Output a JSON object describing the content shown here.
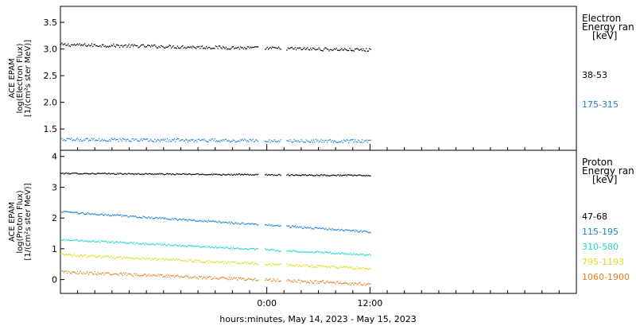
{
  "chart_data": [
    {
      "type": "scatter",
      "panel": "electron",
      "ylabel": [
        "ACE EPAM",
        "log(Electron Flux)",
        "[1/(cm²s ster MeV)]"
      ],
      "ylim": [
        1.1,
        3.8
      ],
      "yticks": [
        "1.5",
        "2.0",
        "2.5",
        "3.0",
        "3.5"
      ],
      "yticks_values": [
        1.5,
        2.0,
        2.5,
        3.0,
        3.5
      ],
      "legend_title": [
        "Electron",
        "Energy ran",
        "[keV]"
      ],
      "x_range_hours": [
        -24,
        36
      ],
      "gaps_hours": [
        [
          -1.0,
          -0.3
        ],
        [
          1.6,
          2.2
        ]
      ],
      "data_range_hours": [
        -24,
        12
      ],
      "series": [
        {
          "name": "38-53",
          "color": "#000000",
          "level_start": 3.08,
          "level_end": 2.98,
          "noise": 0.03
        },
        {
          "name": "175-315",
          "color": "#1f7fd1",
          "level_start": 1.3,
          "level_end": 1.27,
          "noise": 0.03
        }
      ]
    },
    {
      "type": "scatter",
      "panel": "proton",
      "ylabel": [
        "ACE EPAM",
        "log(Proton Flux)",
        "[1/(cm²s ster MeV)]"
      ],
      "ylim": [
        -0.45,
        4.2
      ],
      "yticks": [
        "0",
        "1",
        "2",
        "3",
        "4"
      ],
      "yticks_values": [
        0,
        1,
        2,
        3,
        4
      ],
      "legend_title": [
        "Proton",
        "Energy ran",
        "[keV]"
      ],
      "x_range_hours": [
        -24,
        36
      ],
      "gaps_hours": [
        [
          -1.0,
          -0.3
        ],
        [
          1.6,
          2.2
        ]
      ],
      "data_range_hours": [
        -24,
        12
      ],
      "series": [
        {
          "name": "47-68",
          "color": "#000000",
          "level_start": 3.45,
          "level_end": 3.38,
          "noise": 0.02
        },
        {
          "name": "115-195",
          "color": "#1f7fd1",
          "level_start": 2.2,
          "level_end": 1.55,
          "noise": 0.03
        },
        {
          "name": "310-580",
          "color": "#20d6c8",
          "level_start": 1.3,
          "level_end": 0.8,
          "noise": 0.03
        },
        {
          "name": "795-1193",
          "color": "#d8df1a",
          "level_start": 0.8,
          "level_end": 0.35,
          "noise": 0.04
        },
        {
          "name": "1060-1900",
          "color": "#e08020",
          "level_start": 0.25,
          "level_end": -0.15,
          "noise": 0.05
        }
      ]
    }
  ],
  "xaxis": {
    "tick_hours": [
      0,
      12
    ],
    "tick_labels": [
      "0:00",
      "12:00"
    ],
    "minor_tick_hours": [
      -22,
      -20,
      -18,
      -16,
      -14,
      -12,
      -10,
      -8,
      -6,
      -4,
      -2,
      2,
      4,
      6,
      8,
      10,
      14,
      16,
      18,
      20,
      22,
      24,
      26,
      28,
      30,
      32,
      34
    ],
    "xlabel": "hours:minutes, May 14, 2023 - May 15, 2023"
  }
}
